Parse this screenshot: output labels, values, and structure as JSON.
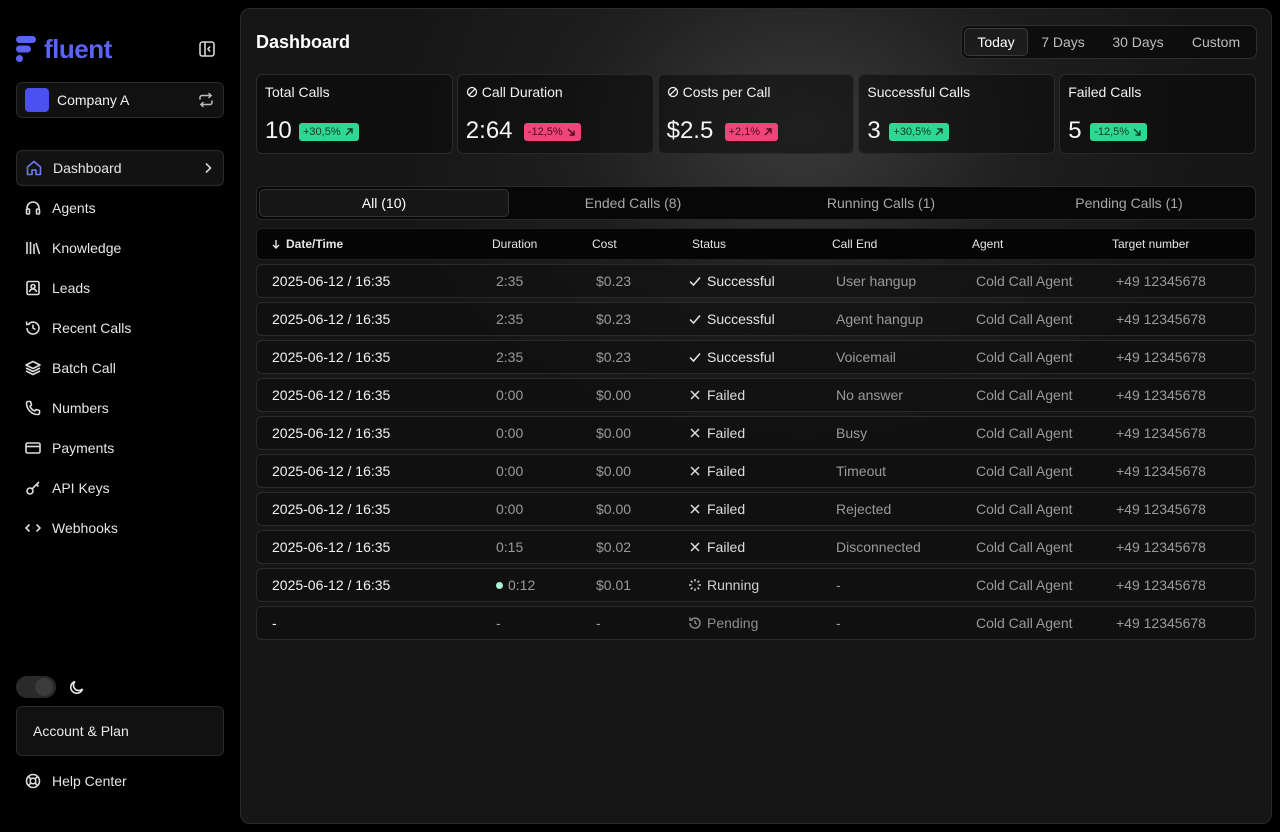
{
  "app": {
    "brand": "fluent",
    "brand_color": "#5b63f5"
  },
  "company": {
    "name": "Company A"
  },
  "nav": [
    {
      "label": "Dashboard",
      "icon": "home-icon",
      "active": true
    },
    {
      "label": "Agents",
      "icon": "headset-icon"
    },
    {
      "label": "Knowledge",
      "icon": "library-icon"
    },
    {
      "label": "Leads",
      "icon": "contact-icon"
    },
    {
      "label": "Recent Calls",
      "icon": "history-icon"
    },
    {
      "label": "Batch Call",
      "icon": "layers-icon"
    },
    {
      "label": "Numbers",
      "icon": "phone-icon"
    },
    {
      "label": "Payments",
      "icon": "card-icon"
    },
    {
      "label": "API Keys",
      "icon": "key-icon"
    },
    {
      "label": "Webhooks",
      "icon": "code-icon"
    }
  ],
  "footer": {
    "account": "Account & Plan",
    "help": "Help Center"
  },
  "header": {
    "title": "Dashboard"
  },
  "range": [
    "Today",
    "7 Days",
    "30 Days",
    "Custom"
  ],
  "stats": [
    {
      "label": "Total Calls",
      "value": "10",
      "delta": "+30,5%",
      "trend": "up"
    },
    {
      "label": "Call Duration",
      "value": "2:64",
      "delta": "-12,5%",
      "trend": "down",
      "icon": "slash-circle-icon"
    },
    {
      "label": "Costs per Call",
      "value": "$2.5",
      "delta": "+2,1%",
      "trend": "up-bad",
      "icon": "slash-circle-icon"
    },
    {
      "label": "Successful Calls",
      "value": "3",
      "delta": "+30,5%",
      "trend": "up"
    },
    {
      "label": "Failed Calls",
      "value": "5",
      "delta": "-12,5%",
      "trend": "down-good"
    }
  ],
  "tabs": [
    "All (10)",
    "Ended Calls (8)",
    "Running Calls (1)",
    "Pending Calls (1)"
  ],
  "columns": [
    "Date/Time",
    "Duration",
    "Cost",
    "Status",
    "Call End",
    "Agent",
    "Target number"
  ],
  "rows": [
    {
      "date": "2025-06-12 / 16:35",
      "duration": "2:35",
      "cost": "$0.23",
      "status": "Successful",
      "end": "User hangup",
      "agent": "Cold Call Agent",
      "target": "+49 12345678"
    },
    {
      "date": "2025-06-12 / 16:35",
      "duration": "2:35",
      "cost": "$0.23",
      "status": "Successful",
      "end": "Agent hangup",
      "agent": "Cold Call Agent",
      "target": "+49 12345678"
    },
    {
      "date": "2025-06-12 / 16:35",
      "duration": "2:35",
      "cost": "$0.23",
      "status": "Successful",
      "end": "Voicemail",
      "agent": "Cold Call Agent",
      "target": "+49 12345678"
    },
    {
      "date": "2025-06-12 / 16:35",
      "duration": "0:00",
      "cost": "$0.00",
      "status": "Failed",
      "end": "No answer",
      "agent": "Cold Call Agent",
      "target": "+49 12345678"
    },
    {
      "date": "2025-06-12 / 16:35",
      "duration": "0:00",
      "cost": "$0.00",
      "status": "Failed",
      "end": "Busy",
      "agent": "Cold Call Agent",
      "target": "+49 12345678"
    },
    {
      "date": "2025-06-12 / 16:35",
      "duration": "0:00",
      "cost": "$0.00",
      "status": "Failed",
      "end": "Timeout",
      "agent": "Cold Call Agent",
      "target": "+49 12345678"
    },
    {
      "date": "2025-06-12 / 16:35",
      "duration": "0:00",
      "cost": "$0.00",
      "status": "Failed",
      "end": "Rejected",
      "agent": "Cold Call Agent",
      "target": "+49 12345678"
    },
    {
      "date": "2025-06-12 / 16:35",
      "duration": "0:15",
      "cost": "$0.02",
      "status": "Failed",
      "end": "Disconnected",
      "agent": "Cold Call Agent",
      "target": "+49 12345678"
    },
    {
      "date": "2025-06-12 / 16:35",
      "duration": "0:12",
      "cost": "$0.01",
      "status": "Running",
      "end": "-",
      "agent": "Cold Call Agent",
      "target": "+49 12345678"
    },
    {
      "date": "-",
      "duration": "-",
      "cost": "-",
      "status": "Pending",
      "end": "-",
      "agent": "Cold Call Agent",
      "target": "+49 12345678"
    }
  ],
  "colors": {
    "accent": "#5b63f5",
    "positive": "#2fd892",
    "negative": "#f0457a"
  }
}
